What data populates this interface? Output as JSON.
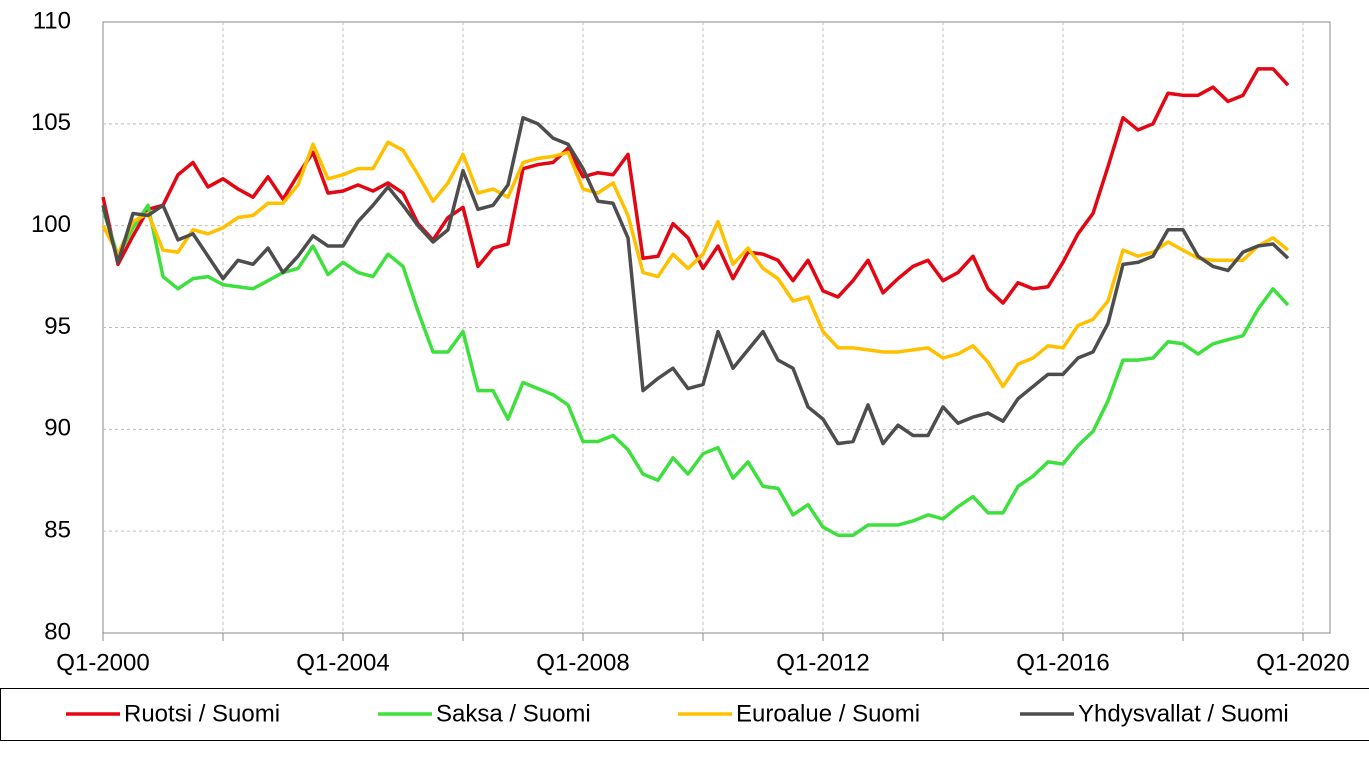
{
  "chart_data": {
    "type": "line",
    "categories": [
      "Q1-2000",
      null,
      null,
      null,
      null,
      null,
      null,
      null,
      null,
      null,
      null,
      null,
      null,
      null,
      null,
      null,
      "Q1-2004",
      null,
      null,
      null,
      null,
      null,
      null,
      null,
      null,
      null,
      null,
      null,
      null,
      null,
      null,
      null,
      "Q1-2008",
      null,
      null,
      null,
      null,
      null,
      null,
      null,
      null,
      null,
      null,
      null,
      null,
      null,
      null,
      null,
      "Q1-2012",
      null,
      null,
      null,
      null,
      null,
      null,
      null,
      null,
      null,
      null,
      null,
      null,
      null,
      null,
      null,
      "Q1-2016",
      null,
      null,
      null,
      null,
      null,
      null,
      null,
      null,
      null,
      null,
      null,
      null,
      null,
      null,
      null,
      "Q1-2020"
    ],
    "series": [
      {
        "name": "Ruotsi / Suomi",
        "color": "#e30613",
        "values": [
          101.4,
          98.1,
          99.5,
          100.8,
          101.0,
          102.5,
          103.1,
          101.9,
          102.3,
          101.8,
          101.4,
          102.4,
          101.3,
          102.5,
          103.6,
          101.6,
          101.7,
          102.0,
          101.7,
          102.1,
          101.6,
          100.1,
          99.3,
          100.4,
          100.9,
          98.0,
          98.9,
          99.1,
          102.8,
          103.0,
          103.1,
          103.8,
          102.4,
          102.6,
          102.5,
          103.5,
          98.4,
          98.5,
          100.1,
          99.4,
          97.9,
          99.0,
          97.4,
          98.7,
          98.6,
          98.3,
          97.3,
          98.3,
          96.8,
          96.5,
          97.3,
          98.3,
          96.7,
          97.4,
          98.0,
          98.3,
          97.3,
          97.7,
          98.5,
          96.9,
          96.2,
          97.2,
          96.9,
          97.0,
          98.2,
          99.6,
          100.6,
          102.9,
          105.3,
          104.7,
          105.0,
          106.5,
          106.4,
          106.4,
          106.8,
          106.1,
          106.4,
          107.7,
          107.7,
          106.9,
          null
        ]
      },
      {
        "name": "Saksa / Suomi",
        "color": "#3ee03e",
        "values": [
          100.8,
          98.5,
          99.9,
          101.0,
          97.5,
          96.9,
          97.4,
          97.5,
          97.1,
          97.0,
          96.9,
          97.3,
          97.7,
          97.9,
          99.0,
          97.6,
          98.2,
          97.7,
          97.5,
          98.6,
          98.0,
          95.8,
          93.8,
          93.8,
          94.8,
          91.9,
          91.9,
          90.5,
          92.3,
          92.0,
          91.7,
          91.2,
          89.4,
          89.4,
          89.7,
          89.0,
          87.8,
          87.5,
          88.6,
          87.8,
          88.8,
          89.1,
          87.6,
          88.4,
          87.2,
          87.1,
          85.8,
          86.3,
          85.2,
          84.8,
          84.8,
          85.3,
          85.3,
          85.3,
          85.5,
          85.8,
          85.6,
          86.2,
          86.7,
          85.9,
          85.9,
          87.2,
          87.7,
          88.4,
          88.3,
          89.2,
          89.9,
          91.4,
          93.4,
          93.4,
          93.5,
          94.3,
          94.2,
          93.7,
          94.2,
          94.4,
          94.6,
          95.9,
          96.9,
          96.1,
          null
        ]
      },
      {
        "name": "Euroalue / Suomi",
        "color": "#ffc000",
        "values": [
          100.0,
          98.6,
          100.2,
          100.6,
          98.8,
          98.7,
          99.8,
          99.6,
          99.9,
          100.4,
          100.5,
          101.1,
          101.1,
          102.0,
          104.0,
          102.3,
          102.5,
          102.8,
          102.8,
          104.1,
          103.7,
          102.5,
          101.2,
          102.1,
          103.5,
          101.6,
          101.8,
          101.4,
          103.1,
          103.3,
          103.4,
          103.6,
          101.8,
          101.6,
          102.1,
          100.5,
          97.7,
          97.5,
          98.6,
          97.9,
          98.6,
          100.2,
          98.1,
          98.9,
          97.9,
          97.4,
          96.3,
          96.5,
          94.8,
          94.0,
          94.0,
          93.9,
          93.8,
          93.8,
          93.9,
          94.0,
          93.5,
          93.7,
          94.1,
          93.3,
          92.1,
          93.2,
          93.5,
          94.1,
          94.0,
          95.1,
          95.4,
          96.3,
          98.8,
          98.5,
          98.7,
          99.2,
          98.8,
          98.4,
          98.3,
          98.3,
          98.3,
          99.0,
          99.4,
          98.8,
          null
        ]
      },
      {
        "name": "Yhdysvallat / Suomi",
        "color": "#4d4d4d",
        "values": [
          101.0,
          98.2,
          100.6,
          100.5,
          101.0,
          99.3,
          99.6,
          98.5,
          97.4,
          98.3,
          98.1,
          98.9,
          97.7,
          98.5,
          99.5,
          99.0,
          99.0,
          100.2,
          101.0,
          101.9,
          101.0,
          100.0,
          99.2,
          99.8,
          102.7,
          100.8,
          101.0,
          102.0,
          105.3,
          105.0,
          104.3,
          104.0,
          102.8,
          101.2,
          101.1,
          99.4,
          91.9,
          92.5,
          93.0,
          92.0,
          92.2,
          94.8,
          93.0,
          93.9,
          94.8,
          93.4,
          93.0,
          91.1,
          90.5,
          89.3,
          89.4,
          91.2,
          89.3,
          90.2,
          89.7,
          89.7,
          91.1,
          90.3,
          90.6,
          90.8,
          90.4,
          91.5,
          92.1,
          92.7,
          92.7,
          93.5,
          93.8,
          95.2,
          98.1,
          98.2,
          98.5,
          99.8,
          99.8,
          98.5,
          98.0,
          97.8,
          98.7,
          99.0,
          99.1,
          98.4,
          null
        ]
      }
    ],
    "ylim": [
      80,
      110
    ],
    "yticks": [
      80,
      85,
      90,
      95,
      100,
      105,
      110
    ],
    "grid": true
  }
}
